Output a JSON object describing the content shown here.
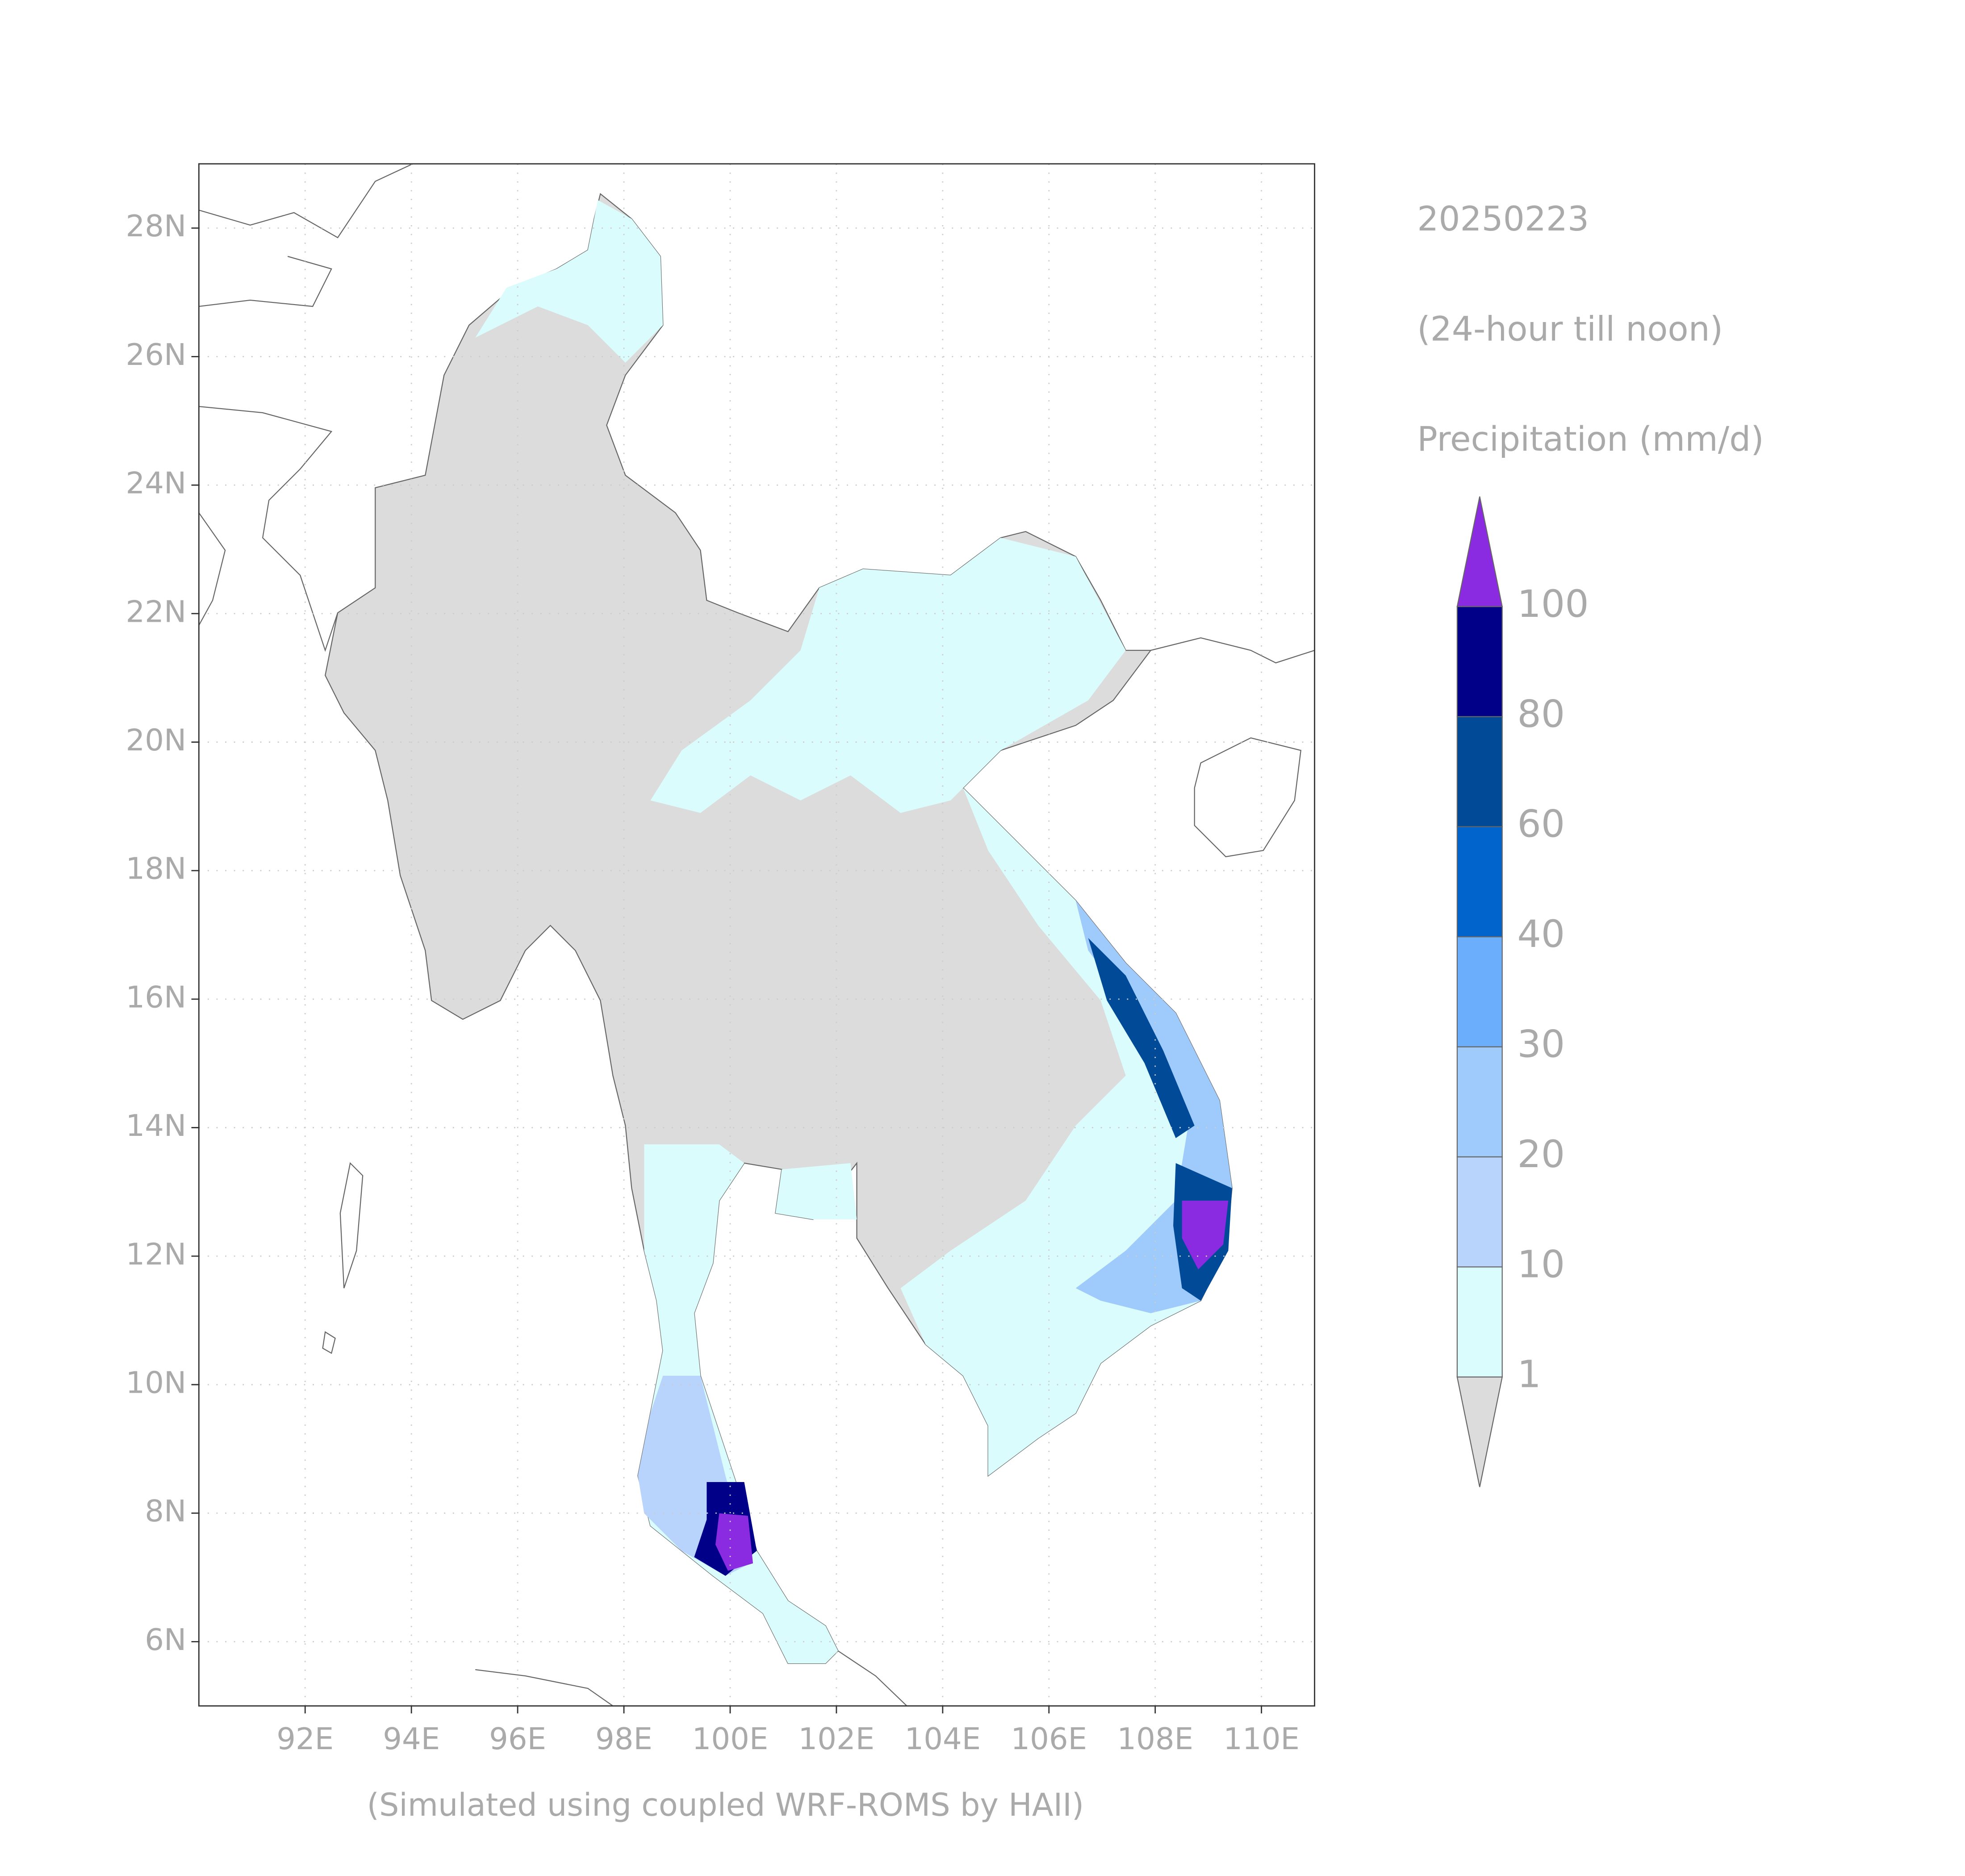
{
  "title": "20250223",
  "subtitle": "(24-hour till noon)",
  "variable": "Precipitation (mm/d)",
  "footer": "(Simulated using coupled WRF-ROMS by HAII)",
  "map": {
    "lonlim": [
      90,
      111
    ],
    "latlim": [
      5,
      29
    ],
    "xticks": [
      {
        "value": 92,
        "label": "92E"
      },
      {
        "value": 94,
        "label": "94E"
      },
      {
        "value": 96,
        "label": "96E"
      },
      {
        "value": 98,
        "label": "98E"
      },
      {
        "value": 100,
        "label": "100E"
      },
      {
        "value": 102,
        "label": "102E"
      },
      {
        "value": 104,
        "label": "104E"
      },
      {
        "value": 106,
        "label": "106E"
      },
      {
        "value": 108,
        "label": "108E"
      },
      {
        "value": 110,
        "label": "110E"
      }
    ],
    "yticks": [
      {
        "value": 6,
        "label": "6N"
      },
      {
        "value": 8,
        "label": "8N"
      },
      {
        "value": 10,
        "label": "10N"
      },
      {
        "value": 12,
        "label": "12N"
      },
      {
        "value": 14,
        "label": "14N"
      },
      {
        "value": 16,
        "label": "16N"
      },
      {
        "value": 18,
        "label": "18N"
      },
      {
        "value": 20,
        "label": "20N"
      },
      {
        "value": 22,
        "label": "22N"
      },
      {
        "value": 24,
        "label": "24N"
      },
      {
        "value": 26,
        "label": "26N"
      },
      {
        "value": 28,
        "label": "28N"
      }
    ]
  },
  "colorbar": {
    "levels": [
      1,
      10,
      20,
      30,
      40,
      60,
      80,
      100
    ],
    "colors": [
      "#dcdcdc",
      "#dafcfc",
      "#b8d4fc",
      "#9ecafc",
      "#6aaefc",
      "#0064cc",
      "#004a98",
      "#000088",
      "#8a2be2"
    ]
  }
}
